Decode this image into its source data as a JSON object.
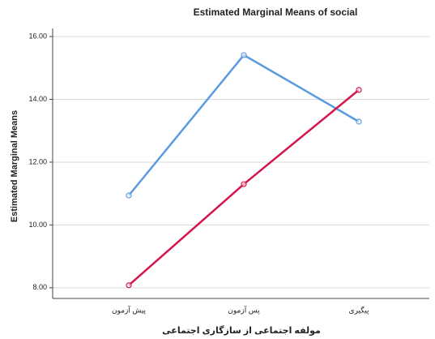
{
  "chart_data": {
    "type": "line",
    "title": "Estimated Marginal Means of social",
    "y_label": "Estimated Marginal Means",
    "x_label": "مولفه اجتماعی از سازگاری اجتماعی",
    "categories": [
      "پیش آزمون",
      "پس آزمون",
      "پیگیری"
    ],
    "series": [
      {
        "color": "#5a9be0",
        "values": [
          10.94,
          15.41,
          13.29
        ]
      },
      {
        "color": "#d4164c",
        "values": [
          8.08,
          11.3,
          14.3
        ]
      }
    ],
    "ylim": [
      7.66,
      16.26
    ],
    "yticks": [
      {
        "value": 8,
        "label": "8.00"
      },
      {
        "value": 10,
        "label": "10.00"
      },
      {
        "value": 12,
        "label": "12.00"
      },
      {
        "value": 14,
        "label": "14.00"
      },
      {
        "value": 16,
        "label": "16.00"
      }
    ],
    "grid": true
  }
}
